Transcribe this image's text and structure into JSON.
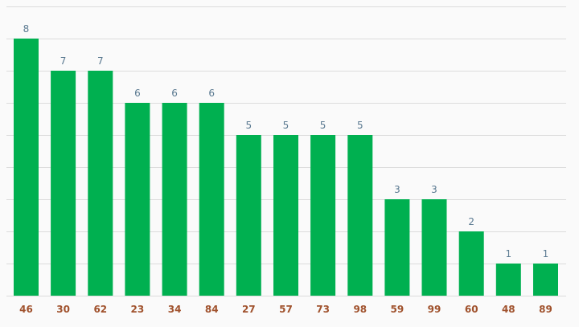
{
  "chart_data": {
    "type": "bar",
    "categories": [
      "46",
      "30",
      "62",
      "23",
      "34",
      "84",
      "27",
      "57",
      "73",
      "98",
      "59",
      "99",
      "60",
      "48",
      "89"
    ],
    "values": [
      8,
      7,
      7,
      6,
      6,
      6,
      5,
      5,
      5,
      5,
      3,
      3,
      2,
      1,
      1
    ],
    "ylim": [
      0,
      9
    ],
    "grid": true,
    "colors": {
      "bar": "#00b050",
      "data_label": "#5b7a91",
      "tick_label": "#a0522d",
      "gridline": "#dcdcdc",
      "background": "#fafafa"
    }
  }
}
